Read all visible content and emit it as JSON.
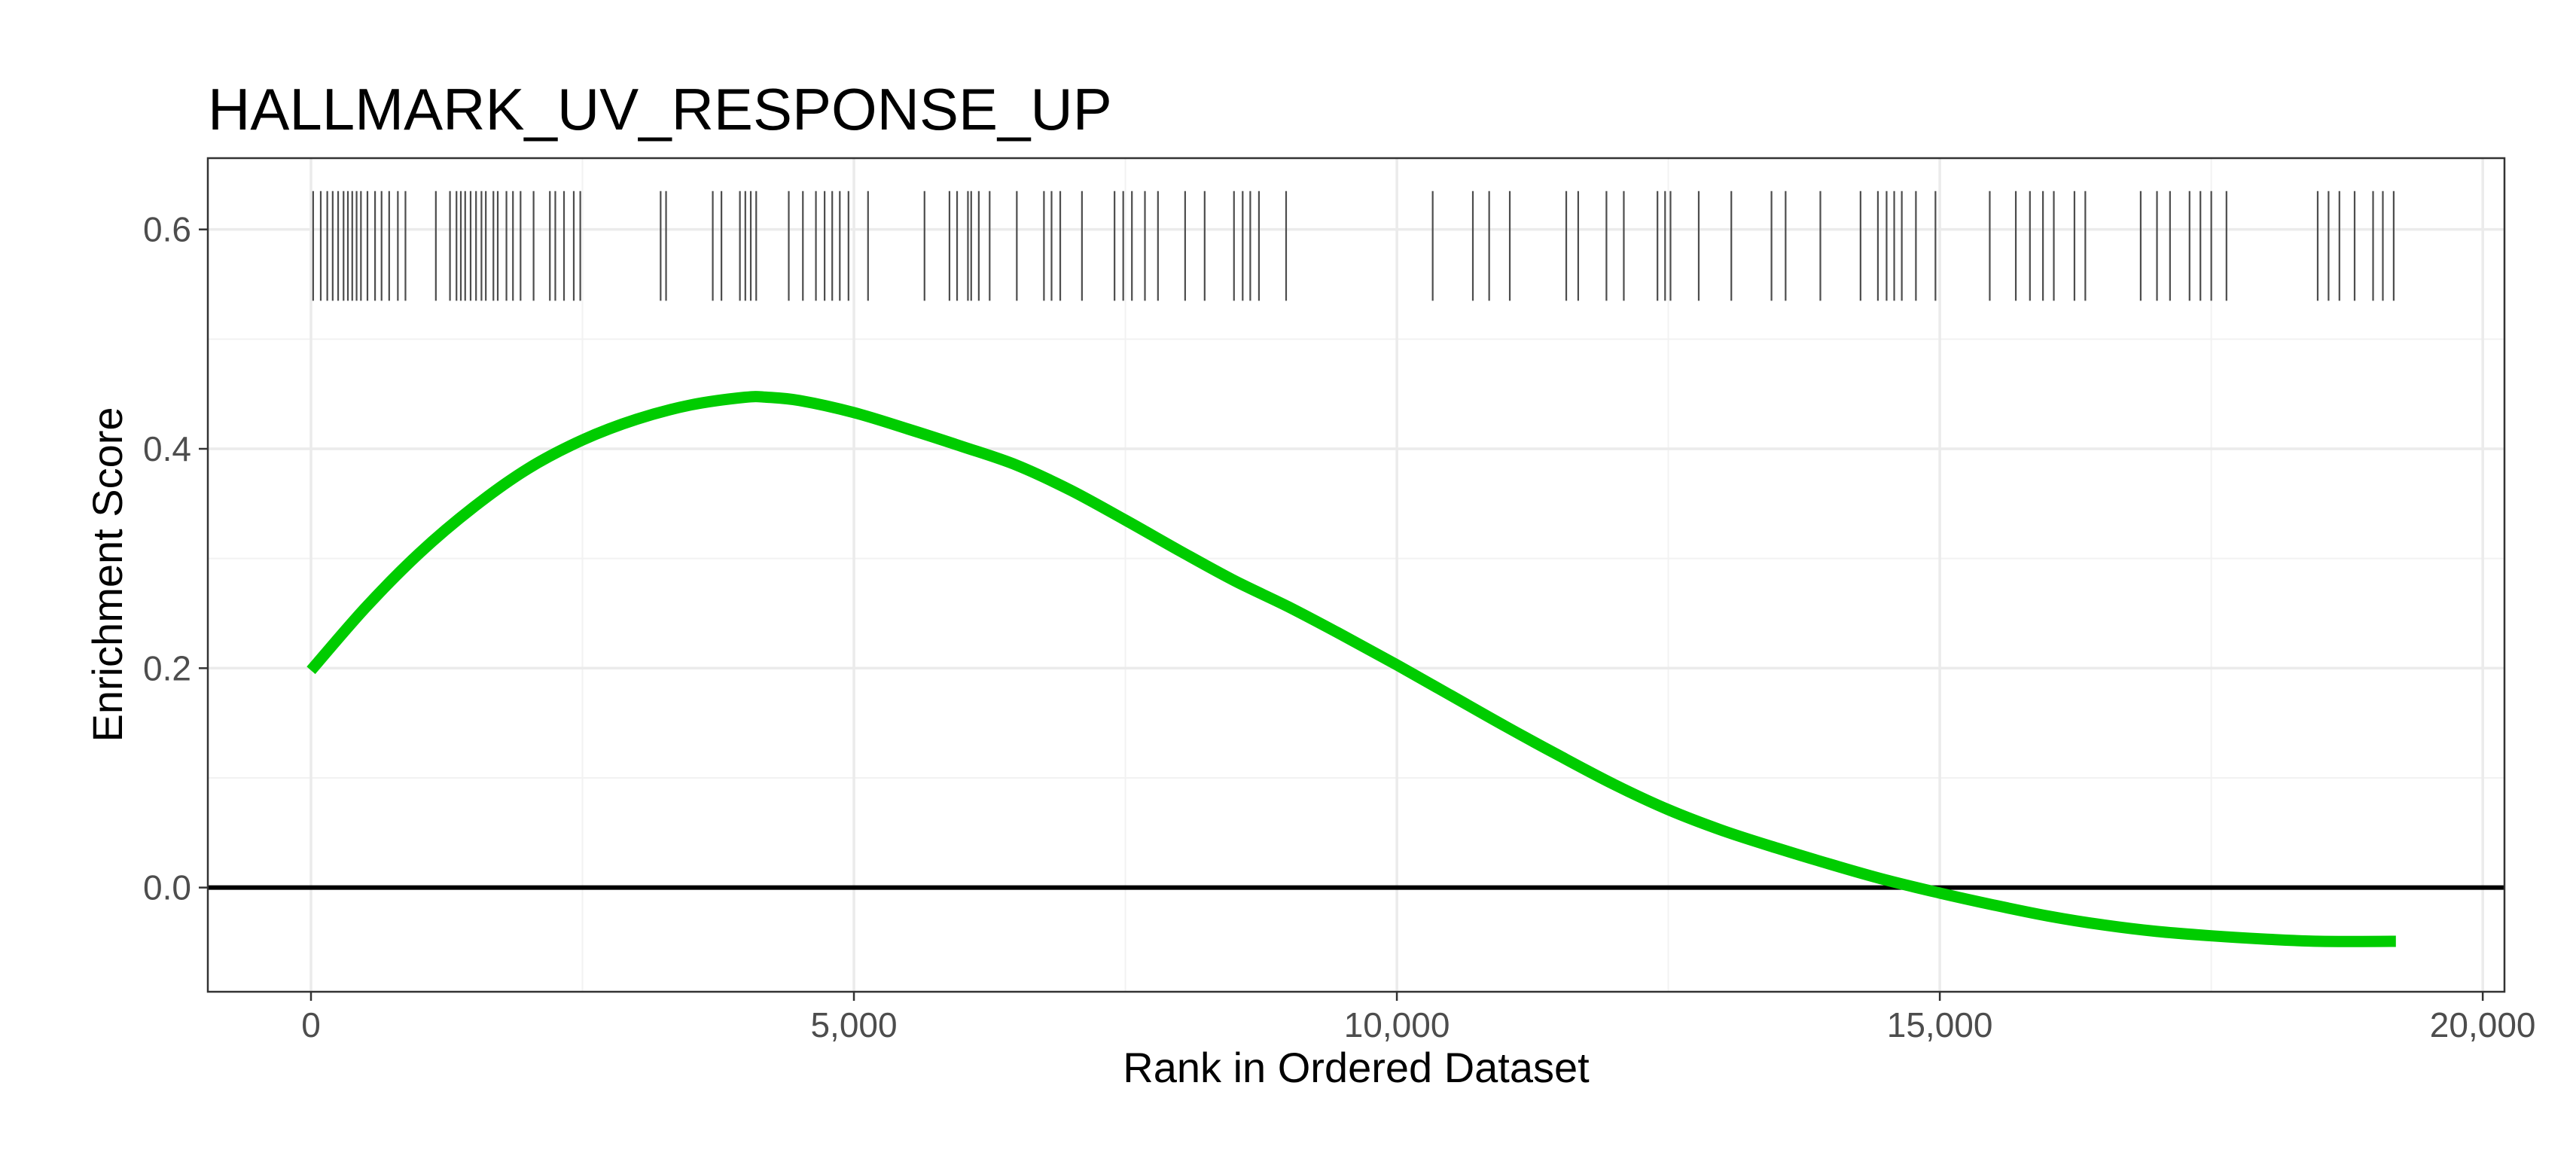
{
  "chart_data": {
    "type": "line",
    "title": "HALLMARK_UV_RESPONSE_UP",
    "xlabel": "Rank in Ordered Dataset",
    "ylabel": "Enrichment Score",
    "xlim": [
      -950,
      20200
    ],
    "ylim": [
      -0.095,
      0.665
    ],
    "x_ticks": [
      0,
      5000,
      10000,
      15000,
      20000
    ],
    "x_tick_labels": [
      "0",
      "5,000",
      "10,000",
      "15,000",
      "20,000"
    ],
    "y_ticks": [
      0.0,
      0.2,
      0.4,
      0.6
    ],
    "y_tick_labels": [
      "0.0",
      "0.2",
      "0.4",
      "0.6"
    ],
    "grid": true,
    "reference_line": {
      "y": 0.0,
      "color": "#000000"
    },
    "series": [
      {
        "color": "#00cc00",
        "x": [
          0,
          500,
          1000,
          1500,
          2000,
          2500,
          3000,
          3500,
          4000,
          4200,
          4500,
          5000,
          5500,
          6000,
          6500,
          7000,
          7500,
          8000,
          8500,
          9000,
          9500,
          10000,
          10500,
          11000,
          11500,
          12000,
          12500,
          13000,
          13500,
          14000,
          14500,
          15000,
          15500,
          16000,
          16500,
          17000,
          17500,
          18000,
          18500,
          19200
        ],
        "y": [
          0.198,
          0.255,
          0.305,
          0.347,
          0.382,
          0.408,
          0.427,
          0.44,
          0.447,
          0.447,
          0.444,
          0.433,
          0.418,
          0.402,
          0.385,
          0.362,
          0.335,
          0.307,
          0.28,
          0.256,
          0.23,
          0.203,
          0.175,
          0.147,
          0.12,
          0.094,
          0.071,
          0.052,
          0.036,
          0.021,
          0.007,
          -0.005,
          -0.016,
          -0.026,
          -0.034,
          -0.04,
          -0.044,
          -0.047,
          -0.049,
          -0.049
        ]
      }
    ],
    "rug": {
      "color": "#4d4d4d",
      "y_range": [
        0.535,
        0.635
      ],
      "positions": [
        20,
        90,
        150,
        200,
        250,
        300,
        340,
        380,
        420,
        460,
        520,
        590,
        650,
        720,
        800,
        870,
        1150,
        1280,
        1340,
        1380,
        1420,
        1470,
        1520,
        1570,
        1610,
        1680,
        1720,
        1800,
        1860,
        1930,
        2050,
        2200,
        2250,
        2330,
        2420,
        2480,
        3220,
        3270,
        3700,
        3780,
        3950,
        4000,
        4050,
        4100,
        4400,
        4530,
        4650,
        4730,
        4800,
        4870,
        4950,
        5130,
        5650,
        5880,
        5950,
        6050,
        6080,
        6150,
        6250,
        6500,
        6750,
        6820,
        6900,
        7100,
        7400,
        7480,
        7560,
        7680,
        7800,
        8050,
        8230,
        8500,
        8580,
        8650,
        8730,
        8980,
        10330,
        10700,
        10850,
        11040,
        11560,
        11670,
        11930,
        12090,
        12400,
        12470,
        12520,
        12780,
        13080,
        13450,
        13580,
        13900,
        14270,
        14430,
        14510,
        14580,
        14650,
        14780,
        14960,
        15460,
        15700,
        15830,
        15950,
        16050,
        16240,
        16340,
        16850,
        17000,
        17120,
        17300,
        17400,
        17500,
        17640,
        18480,
        18580,
        18680,
        18820,
        18990,
        19080,
        19180
      ]
    }
  }
}
